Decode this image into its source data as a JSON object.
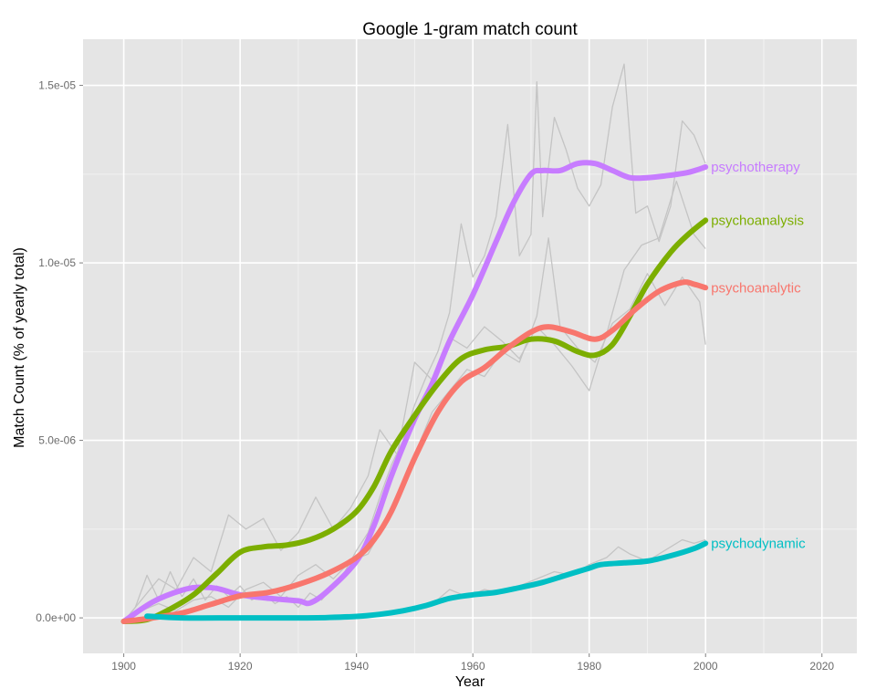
{
  "chart_data": {
    "type": "line",
    "title": "Google 1-gram match count",
    "xlabel": "Year",
    "ylabel": "Match Count (% of yearly total)",
    "xlim": [
      1893,
      2026
    ],
    "ylim": [
      -1e-06,
      1.63e-05
    ],
    "x_ticks": [
      1900,
      1920,
      1940,
      1960,
      1980,
      2000,
      2020
    ],
    "x_tick_labels": [
      "1900",
      "1920",
      "1940",
      "1960",
      "1980",
      "2000",
      "2020"
    ],
    "y_ticks": [
      0,
      5e-06,
      1e-05,
      1.5e-05
    ],
    "y_tick_labels": [
      "0.0e+00",
      "5.0e-06",
      "1.0e-05",
      "1.5e-05"
    ],
    "grid": true,
    "background": "#e5e5e5",
    "series": [
      {
        "name": "psychotherapy",
        "color": "#c77cff",
        "smoothed": [
          [
            1900,
            -1e-07
          ],
          [
            1905,
            4.5e-07
          ],
          [
            1910,
            7.8e-07
          ],
          [
            1913,
            8.6e-07
          ],
          [
            1916,
            8.3e-07
          ],
          [
            1920,
            6.5e-07
          ],
          [
            1925,
            5.5e-07
          ],
          [
            1930,
            4.8e-07
          ],
          [
            1932,
            4.2e-07
          ],
          [
            1935,
            7.5e-07
          ],
          [
            1940,
            1.6e-06
          ],
          [
            1943,
            2.6e-06
          ],
          [
            1946,
            4e-06
          ],
          [
            1950,
            5.6e-06
          ],
          [
            1953,
            6.6e-06
          ],
          [
            1956,
            7.8e-06
          ],
          [
            1960,
            9.1e-06
          ],
          [
            1964,
            1.06e-05
          ],
          [
            1967,
            1.17e-05
          ],
          [
            1970,
            1.25e-05
          ],
          [
            1972,
            1.26e-05
          ],
          [
            1975,
            1.26e-05
          ],
          [
            1978,
            1.28e-05
          ],
          [
            1981,
            1.28e-05
          ],
          [
            1984,
            1.26e-05
          ],
          [
            1987,
            1.24e-05
          ],
          [
            1990,
            1.24e-05
          ],
          [
            1993,
            1.245e-05
          ],
          [
            1997,
            1.255e-05
          ],
          [
            2000,
            1.27e-05
          ]
        ],
        "raw": [
          [
            1900,
            -1e-07
          ],
          [
            1902,
            3e-07
          ],
          [
            1904,
            1.2e-06
          ],
          [
            1906,
            5e-07
          ],
          [
            1908,
            1.3e-06
          ],
          [
            1910,
            6e-07
          ],
          [
            1912,
            1.1e-06
          ],
          [
            1914,
            5e-07
          ],
          [
            1916,
            9e-07
          ],
          [
            1918,
            6e-07
          ],
          [
            1920,
            9e-07
          ],
          [
            1922,
            5e-07
          ],
          [
            1924,
            7e-07
          ],
          [
            1926,
            4e-07
          ],
          [
            1928,
            6e-07
          ],
          [
            1930,
            3e-07
          ],
          [
            1932,
            7e-07
          ],
          [
            1934,
            5e-07
          ],
          [
            1936,
            9e-07
          ],
          [
            1938,
            1.3e-06
          ],
          [
            1940,
            1.9e-06
          ],
          [
            1942,
            2.4e-06
          ],
          [
            1944,
            3.4e-06
          ],
          [
            1946,
            4.3e-06
          ],
          [
            1948,
            5e-06
          ],
          [
            1950,
            6e-06
          ],
          [
            1952,
            6.8e-06
          ],
          [
            1954,
            7.5e-06
          ],
          [
            1956,
            8.6e-06
          ],
          [
            1958,
            1.11e-05
          ],
          [
            1960,
            9.6e-06
          ],
          [
            1962,
            1.02e-05
          ],
          [
            1964,
            1.13e-05
          ],
          [
            1966,
            1.39e-05
          ],
          [
            1968,
            1.02e-05
          ],
          [
            1970,
            1.08e-05
          ],
          [
            1971,
            1.51e-05
          ],
          [
            1972,
            1.13e-05
          ],
          [
            1974,
            1.41e-05
          ],
          [
            1976,
            1.32e-05
          ],
          [
            1978,
            1.21e-05
          ],
          [
            1980,
            1.16e-05
          ],
          [
            1982,
            1.22e-05
          ],
          [
            1984,
            1.44e-05
          ],
          [
            1986,
            1.56e-05
          ],
          [
            1988,
            1.14e-05
          ],
          [
            1990,
            1.16e-05
          ],
          [
            1992,
            1.06e-05
          ],
          [
            1994,
            1.16e-05
          ],
          [
            1996,
            1.4e-05
          ],
          [
            1998,
            1.36e-05
          ],
          [
            2000,
            1.28e-05
          ]
        ]
      },
      {
        "name": "psychoanalysis",
        "color": "#7cae00",
        "smoothed": [
          [
            1900,
            -1e-07
          ],
          [
            1904,
            -5e-08
          ],
          [
            1908,
            2.5e-07
          ],
          [
            1912,
            6.5e-07
          ],
          [
            1916,
            1.25e-06
          ],
          [
            1920,
            1.85e-06
          ],
          [
            1924,
            2e-06
          ],
          [
            1928,
            2.05e-06
          ],
          [
            1932,
            2.2e-06
          ],
          [
            1936,
            2.5e-06
          ],
          [
            1940,
            3e-06
          ],
          [
            1943,
            3.7e-06
          ],
          [
            1946,
            4.7e-06
          ],
          [
            1950,
            5.7e-06
          ],
          [
            1954,
            6.6e-06
          ],
          [
            1958,
            7.3e-06
          ],
          [
            1962,
            7.55e-06
          ],
          [
            1966,
            7.65e-06
          ],
          [
            1970,
            7.85e-06
          ],
          [
            1974,
            7.8e-06
          ],
          [
            1978,
            7.5e-06
          ],
          [
            1981,
            7.4e-06
          ],
          [
            1984,
            7.7e-06
          ],
          [
            1987,
            8.5e-06
          ],
          [
            1990,
            9.4e-06
          ],
          [
            1994,
            1.03e-05
          ],
          [
            1997,
            1.08e-05
          ],
          [
            2000,
            1.12e-05
          ]
        ],
        "raw": [
          [
            1900,
            -1e-07
          ],
          [
            1903,
            5e-07
          ],
          [
            1906,
            1.1e-06
          ],
          [
            1909,
            8e-07
          ],
          [
            1912,
            1.7e-06
          ],
          [
            1915,
            1.3e-06
          ],
          [
            1918,
            2.9e-06
          ],
          [
            1921,
            2.5e-06
          ],
          [
            1924,
            2.8e-06
          ],
          [
            1927,
            1.9e-06
          ],
          [
            1930,
            2.4e-06
          ],
          [
            1933,
            3.4e-06
          ],
          [
            1936,
            2.5e-06
          ],
          [
            1939,
            3.1e-06
          ],
          [
            1942,
            4e-06
          ],
          [
            1944,
            5.3e-06
          ],
          [
            1947,
            4.6e-06
          ],
          [
            1950,
            7.2e-06
          ],
          [
            1953,
            6.7e-06
          ],
          [
            1956,
            7.9e-06
          ],
          [
            1959,
            7.6e-06
          ],
          [
            1962,
            8.2e-06
          ],
          [
            1965,
            7.8e-06
          ],
          [
            1968,
            7.3e-06
          ],
          [
            1971,
            8.2e-06
          ],
          [
            1974,
            7.7e-06
          ],
          [
            1977,
            7.1e-06
          ],
          [
            1980,
            6.4e-06
          ],
          [
            1983,
            8e-06
          ],
          [
            1986,
            9.8e-06
          ],
          [
            1989,
            1.05e-05
          ],
          [
            1992,
            1.07e-05
          ],
          [
            1995,
            1.23e-05
          ],
          [
            1998,
            1.08e-05
          ],
          [
            2000,
            1.04e-05
          ]
        ]
      },
      {
        "name": "psychoanalytic",
        "color": "#f8766d",
        "smoothed": [
          [
            1900,
            -1e-07
          ],
          [
            1905,
            0
          ],
          [
            1910,
            1.4e-07
          ],
          [
            1915,
            3.8e-07
          ],
          [
            1920,
            6.2e-07
          ],
          [
            1925,
            7.2e-07
          ],
          [
            1930,
            9.4e-07
          ],
          [
            1935,
            1.25e-06
          ],
          [
            1940,
            1.7e-06
          ],
          [
            1943,
            2.2e-06
          ],
          [
            1946,
            3e-06
          ],
          [
            1950,
            4.5e-06
          ],
          [
            1954,
            5.8e-06
          ],
          [
            1958,
            6.65e-06
          ],
          [
            1962,
            7.05e-06
          ],
          [
            1966,
            7.6e-06
          ],
          [
            1970,
            8.05e-06
          ],
          [
            1973,
            8.2e-06
          ],
          [
            1977,
            8.05e-06
          ],
          [
            1981,
            7.85e-06
          ],
          [
            1984,
            8.1e-06
          ],
          [
            1988,
            8.7e-06
          ],
          [
            1992,
            9.2e-06
          ],
          [
            1996,
            9.45e-06
          ],
          [
            1998,
            9.4e-06
          ],
          [
            2000,
            9.3e-06
          ]
        ],
        "raw": [
          [
            1900,
            -1e-07
          ],
          [
            1903,
            2e-07
          ],
          [
            1906,
            4e-07
          ],
          [
            1909,
            2e-07
          ],
          [
            1912,
            5e-07
          ],
          [
            1915,
            6e-07
          ],
          [
            1918,
            3e-07
          ],
          [
            1921,
            8e-07
          ],
          [
            1924,
            1e-06
          ],
          [
            1927,
            6e-07
          ],
          [
            1930,
            1.2e-06
          ],
          [
            1933,
            1.5e-06
          ],
          [
            1936,
            1.1e-06
          ],
          [
            1939,
            1.6e-06
          ],
          [
            1942,
            1.8e-06
          ],
          [
            1944,
            2.4e-06
          ],
          [
            1947,
            3.5e-06
          ],
          [
            1950,
            4.6e-06
          ],
          [
            1953,
            5.8e-06
          ],
          [
            1956,
            6.4e-06
          ],
          [
            1959,
            7e-06
          ],
          [
            1962,
            6.8e-06
          ],
          [
            1965,
            7.5e-06
          ],
          [
            1968,
            7.2e-06
          ],
          [
            1971,
            8.5e-06
          ],
          [
            1973,
            1.07e-05
          ],
          [
            1975,
            8.2e-06
          ],
          [
            1978,
            7.6e-06
          ],
          [
            1981,
            7.2e-06
          ],
          [
            1984,
            8.3e-06
          ],
          [
            1987,
            8.7e-06
          ],
          [
            1990,
            9.7e-06
          ],
          [
            1993,
            8.8e-06
          ],
          [
            1996,
            9.6e-06
          ],
          [
            1999,
            8.9e-06
          ],
          [
            2000,
            7.7e-06
          ]
        ]
      },
      {
        "name": "psychodynamic",
        "color": "#00bfc4",
        "smoothed": [
          [
            1904,
            5e-08
          ],
          [
            1910,
            0
          ],
          [
            1920,
            0
          ],
          [
            1930,
            0
          ],
          [
            1935,
            1e-08
          ],
          [
            1940,
            4e-08
          ],
          [
            1944,
            1e-07
          ],
          [
            1948,
            2e-07
          ],
          [
            1952,
            3.5e-07
          ],
          [
            1956,
            5.5e-07
          ],
          [
            1960,
            6.5e-07
          ],
          [
            1964,
            7.2e-07
          ],
          [
            1968,
            8.5e-07
          ],
          [
            1972,
            1e-06
          ],
          [
            1976,
            1.2e-06
          ],
          [
            1980,
            1.4e-06
          ],
          [
            1982,
            1.5e-06
          ],
          [
            1986,
            1.55e-06
          ],
          [
            1990,
            1.6e-06
          ],
          [
            1994,
            1.75e-06
          ],
          [
            1998,
            1.95e-06
          ],
          [
            2000,
            2.1e-06
          ]
        ],
        "raw": [
          [
            1904,
            5e-08
          ],
          [
            1910,
            2e-08
          ],
          [
            1920,
            1e-08
          ],
          [
            1930,
            2e-08
          ],
          [
            1940,
            6e-08
          ],
          [
            1945,
            1.5e-07
          ],
          [
            1950,
            2.5e-07
          ],
          [
            1953,
            3.8e-07
          ],
          [
            1956,
            8e-07
          ],
          [
            1959,
            6e-07
          ],
          [
            1962,
            8e-07
          ],
          [
            1965,
            7e-07
          ],
          [
            1968,
            9e-07
          ],
          [
            1971,
            1.1e-06
          ],
          [
            1974,
            1.3e-06
          ],
          [
            1977,
            1.2e-06
          ],
          [
            1980,
            1.5e-06
          ],
          [
            1983,
            1.7e-06
          ],
          [
            1985,
            2e-06
          ],
          [
            1987,
            1.8e-06
          ],
          [
            1990,
            1.6e-06
          ],
          [
            1993,
            1.9e-06
          ],
          [
            1996,
            2.2e-06
          ],
          [
            1998,
            2.1e-06
          ],
          [
            2000,
            2.2e-06
          ]
        ]
      }
    ]
  }
}
